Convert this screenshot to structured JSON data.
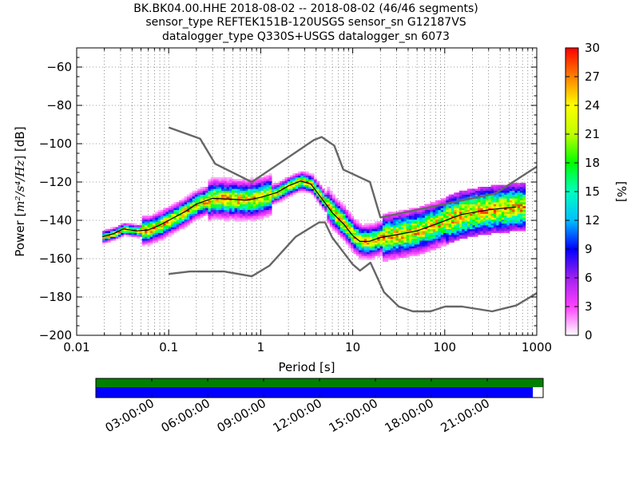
{
  "title": {
    "line1": "BK.BK04.00.HHE   2018-08-02 -- 2018-08-02  (46/46 segments)",
    "line2": "sensor_type REFTEK151B-120USGS sensor_sn G12187VS",
    "line3": "datalogger_type Q330S+USGS datalogger_sn 6073"
  },
  "chart_data": {
    "type": "heatmap",
    "subtype": "probabilistic-power-spectral-density",
    "xlabel": "Period [s]",
    "ylabel_prefix": "Power [",
    "ylabel_math": "m²/s⁴/Hz",
    "ylabel_suffix": "] [dB]",
    "xscale": "log",
    "xlim": [
      0.01,
      1000
    ],
    "xticks": [
      0.01,
      0.1,
      1,
      10,
      100,
      1000
    ],
    "xtick_labels": [
      "0.01",
      "0.1",
      "1",
      "10",
      "100",
      "1000"
    ],
    "ylim": [
      -200,
      -50
    ],
    "yticks": [
      -200,
      -180,
      -160,
      -140,
      -120,
      -100,
      -80,
      -60
    ],
    "ytick_labels": [
      "−200",
      "−180",
      "−160",
      "−140",
      "−120",
      "−100",
      "−80",
      "−60"
    ],
    "grid": "dotted",
    "colorbar": {
      "label": "[%]",
      "range": [
        0,
        30
      ],
      "ticks": [
        0,
        3,
        6,
        9,
        12,
        15,
        18,
        21,
        24,
        27,
        30
      ],
      "colors": [
        "#ffffff",
        "#ff40ff",
        "#a020f0",
        "#0000ff",
        "#00bfff",
        "#00ffc0",
        "#00ff00",
        "#c0ff00",
        "#ffff00",
        "#ff8000",
        "#ff0000"
      ]
    },
    "series": [
      {
        "role": "noise-model-high",
        "color": "#666666",
        "points": [
          [
            0.1,
            -91.5
          ],
          [
            0.22,
            -97.4
          ],
          [
            0.32,
            -110.5
          ],
          [
            0.8,
            -120
          ],
          [
            3.8,
            -98
          ],
          [
            4.6,
            -96.5
          ],
          [
            6.3,
            -101
          ],
          [
            7.9,
            -113.5
          ],
          [
            15.4,
            -120
          ],
          [
            20,
            -138.5
          ],
          [
            354,
            -126
          ],
          [
            1000,
            -112
          ]
        ]
      },
      {
        "role": "noise-model-low",
        "color": "#666666",
        "points": [
          [
            0.1,
            -168
          ],
          [
            0.17,
            -166.7
          ],
          [
            0.4,
            -166.7
          ],
          [
            0.8,
            -169.2
          ],
          [
            1.24,
            -163.7
          ],
          [
            2.4,
            -148.6
          ],
          [
            4.3,
            -141.1
          ],
          [
            5,
            -141.1
          ],
          [
            6,
            -149
          ],
          [
            10,
            -163
          ],
          [
            12,
            -166.2
          ],
          [
            15.6,
            -162.1
          ],
          [
            21.9,
            -177.5
          ],
          [
            31.6,
            -185
          ],
          [
            45,
            -187.5
          ],
          [
            70,
            -187.5
          ],
          [
            101,
            -185
          ],
          [
            154,
            -185
          ],
          [
            328,
            -187.5
          ],
          [
            600,
            -184.4
          ],
          [
            1000,
            -178
          ]
        ]
      },
      {
        "role": "mode-curve",
        "color": "#000000",
        "points": [
          [
            0.019,
            -148.5
          ],
          [
            0.025,
            -147
          ],
          [
            0.032,
            -144.5
          ],
          [
            0.045,
            -145.5
          ],
          [
            0.06,
            -145
          ],
          [
            0.08,
            -142.5
          ],
          [
            0.1,
            -140
          ],
          [
            0.15,
            -135.5
          ],
          [
            0.2,
            -131.5
          ],
          [
            0.3,
            -128.5
          ],
          [
            0.5,
            -129
          ],
          [
            0.7,
            -129.5
          ],
          [
            1,
            -128
          ],
          [
            1.5,
            -125.5
          ],
          [
            2,
            -122
          ],
          [
            2.7,
            -119.5
          ],
          [
            3.5,
            -121
          ],
          [
            4.5,
            -128
          ],
          [
            6,
            -136
          ],
          [
            8,
            -142
          ],
          [
            10,
            -148
          ],
          [
            12,
            -151
          ],
          [
            15,
            -151
          ],
          [
            20,
            -149
          ],
          [
            30,
            -147.5
          ],
          [
            50,
            -145.5
          ],
          [
            80,
            -142
          ],
          [
            150,
            -137
          ],
          [
            300,
            -134.5
          ],
          [
            600,
            -133
          ]
        ]
      }
    ]
  },
  "timeline": {
    "labels": [
      "03:00:00",
      "06:00:00",
      "09:00:00",
      "12:00:00",
      "15:00:00",
      "18:00:00",
      "21:00:00"
    ],
    "top_bar_color": "#008000",
    "bottom_bar_color": "#0000ff",
    "coverage_fraction": 0.977
  }
}
